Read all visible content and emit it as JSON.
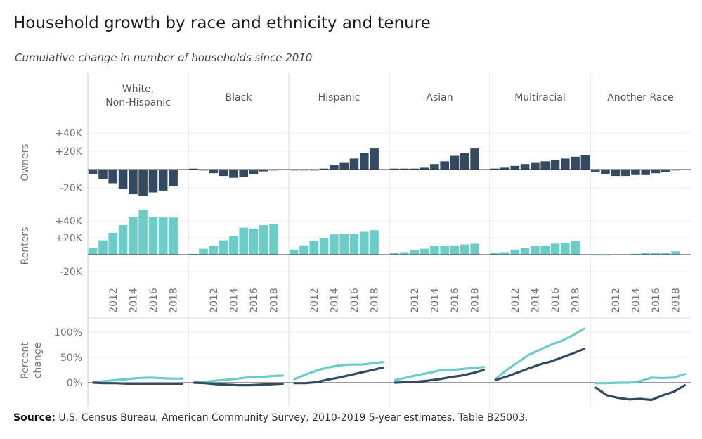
{
  "title": "Household growth by race and ethnicity and tenure",
  "subtitle": "Cumulative change in number of households since 2010",
  "source": {
    "label": "Source:",
    "text": "U.S. Census Bureau, American Community Survey, 2010-2019 5-year estimates, Table B25003."
  },
  "colors": {
    "owners": "#344a63",
    "renters": "#6bcdc8",
    "axis_text": "#777777",
    "grid": "#eeeeee",
    "divider": "#dddddd",
    "zero": "#333333"
  },
  "chart_data": {
    "type": "bar",
    "panels": [
      "White,\nNon-Hispanic",
      "Black",
      "Hispanic",
      "Asian",
      "Multiracial",
      "Another Race"
    ],
    "x": [
      2010,
      2011,
      2012,
      2013,
      2014,
      2015,
      2016,
      2017,
      2018,
      2019
    ],
    "x_tick_labels": [
      "2012",
      "2014",
      "2016",
      "2018"
    ],
    "rows": [
      {
        "name": "Owners",
        "unit": "households",
        "ylim": [
          -30000,
          50000
        ],
        "y_tick_labels": [
          "+40K",
          "+20K",
          "-20K"
        ],
        "y_ticks": [
          40000,
          20000,
          -20000
        ],
        "series": [
          {
            "name": "White, Non-Hispanic",
            "values": [
              -5000,
              -10000,
              -15000,
              -21000,
              -27000,
              -29000,
              -25000,
              -23000,
              -18000,
              0
            ]
          },
          {
            "name": "Black",
            "values": [
              1000,
              -1000,
              -4000,
              -7000,
              -9000,
              -8000,
              -5000,
              -2000,
              -1000,
              0
            ]
          },
          {
            "name": "Hispanic",
            "values": [
              -1000,
              -1000,
              -1000,
              1000,
              5000,
              8000,
              12000,
              18000,
              23000,
              0
            ]
          },
          {
            "name": "Asian",
            "values": [
              1000,
              1000,
              1000,
              2000,
              6000,
              9000,
              15000,
              18000,
              23000,
              0
            ]
          },
          {
            "name": "Multiracial",
            "values": [
              1000,
              2000,
              4000,
              6000,
              8000,
              9000,
              10000,
              12000,
              14000,
              16000
            ]
          },
          {
            "name": "Another Race",
            "values": [
              -3000,
              -5000,
              -7000,
              -7000,
              -6000,
              -6000,
              -4000,
              -3000,
              -1000,
              0
            ]
          }
        ]
      },
      {
        "name": "Renters",
        "unit": "households",
        "ylim": [
          -30000,
          60000
        ],
        "y_tick_labels": [
          "+40K",
          "+20K",
          "-20K"
        ],
        "y_ticks": [
          40000,
          20000,
          -20000
        ],
        "series": [
          {
            "name": "White, Non-Hispanic",
            "values": [
              8000,
              17000,
              26000,
              35000,
              45000,
              53000,
              45000,
              44000,
              44000,
              0
            ]
          },
          {
            "name": "Black",
            "values": [
              1000,
              7000,
              11000,
              17000,
              22000,
              32000,
              31000,
              35000,
              36000,
              0
            ]
          },
          {
            "name": "Hispanic",
            "values": [
              6000,
              11000,
              16000,
              20000,
              24000,
              25000,
              25000,
              27000,
              29000,
              0
            ]
          },
          {
            "name": "Asian",
            "values": [
              2000,
              3000,
              5000,
              7000,
              10000,
              10000,
              11000,
              12000,
              13000,
              0
            ]
          },
          {
            "name": "Multiracial",
            "values": [
              2000,
              3000,
              6000,
              8000,
              10000,
              11000,
              13000,
              14000,
              16000,
              0
            ]
          },
          {
            "name": "Another Race",
            "values": [
              -1000,
              -1000,
              0,
              0,
              1000,
              2000,
              2000,
              2000,
              4000,
              0
            ]
          }
        ]
      }
    ],
    "percent_change": {
      "name": "Percent\nchange",
      "type": "line",
      "ylim": [
        -40,
        110
      ],
      "y_tick_labels": [
        "100%",
        "50%",
        "0%"
      ],
      "y_ticks": [
        100,
        50,
        0
      ],
      "owners": [
        [
          0,
          -1,
          -1,
          -2,
          -2,
          -2,
          -2,
          -2,
          -2
        ],
        [
          0,
          -1,
          -3,
          -4,
          -5,
          -5,
          -4,
          -3,
          -2
        ],
        [
          -1,
          -1,
          1,
          6,
          10,
          15,
          20,
          25,
          30
        ],
        [
          0,
          1,
          2,
          4,
          7,
          11,
          14,
          19,
          25
        ],
        [
          5,
          12,
          20,
          28,
          36,
          42,
          50,
          58,
          67
        ],
        [
          -10,
          -25,
          -30,
          -33,
          -32,
          -34,
          -25,
          -18,
          -5
        ]
      ],
      "renters": [
        [
          1,
          3,
          5,
          7,
          9,
          10,
          9,
          8,
          8
        ],
        [
          0,
          2,
          4,
          6,
          8,
          11,
          11,
          13,
          14
        ],
        [
          7,
          16,
          24,
          30,
          34,
          36,
          36,
          38,
          41
        ],
        [
          5,
          10,
          15,
          19,
          24,
          25,
          27,
          29,
          31
        ],
        [
          7,
          25,
          40,
          55,
          65,
          75,
          83,
          94,
          107
        ],
        [
          -1,
          -1,
          0,
          0,
          3,
          10,
          9,
          10,
          17
        ]
      ]
    }
  }
}
